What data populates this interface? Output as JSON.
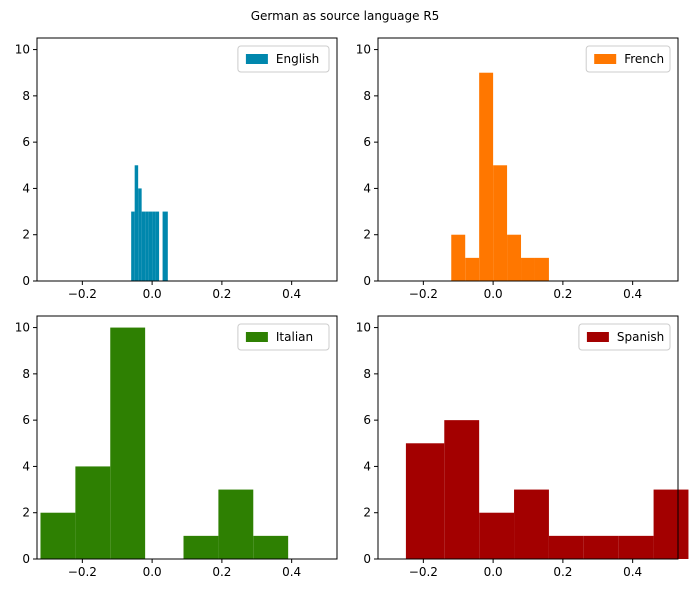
{
  "title": "German as source language R5",
  "chart_data": [
    {
      "type": "bar",
      "series": [
        {
          "name": "English",
          "color": "#0087ad"
        }
      ],
      "bins": [
        {
          "x0": -0.06,
          "x1": -0.05,
          "count": 3
        },
        {
          "x0": -0.05,
          "x1": -0.04,
          "count": 5
        },
        {
          "x0": -0.04,
          "x1": -0.03,
          "count": 4
        },
        {
          "x0": -0.03,
          "x1": -0.02,
          "count": 3
        },
        {
          "x0": -0.02,
          "x1": -0.01,
          "count": 3
        },
        {
          "x0": -0.01,
          "x1": 0.0,
          "count": 3
        },
        {
          "x0": 0.0,
          "x1": 0.01,
          "count": 3
        },
        {
          "x0": 0.01,
          "x1": 0.02,
          "count": 3
        },
        {
          "x0": 0.03,
          "x1": 0.045,
          "count": 3
        }
      ],
      "xlim": [
        -0.33,
        0.53
      ],
      "ylim": [
        0,
        10.5
      ],
      "xticks": [
        "−0.2",
        "0.0",
        "0.2",
        "0.4"
      ],
      "xtick_values": [
        -0.2,
        0.0,
        0.2,
        0.4
      ],
      "yticks": [
        "0",
        "2",
        "4",
        "6",
        "8",
        "10"
      ],
      "ytick_values": [
        0,
        2,
        4,
        6,
        8,
        10
      ],
      "legend": "top-right",
      "grid": false
    },
    {
      "type": "bar",
      "series": [
        {
          "name": "French",
          "color": "#ff7700"
        }
      ],
      "bins": [
        {
          "x0": -0.12,
          "x1": -0.08,
          "count": 2
        },
        {
          "x0": -0.08,
          "x1": -0.04,
          "count": 1
        },
        {
          "x0": -0.04,
          "x1": 0.0,
          "count": 9
        },
        {
          "x0": 0.0,
          "x1": 0.04,
          "count": 5
        },
        {
          "x0": 0.04,
          "x1": 0.08,
          "count": 2
        },
        {
          "x0": 0.08,
          "x1": 0.12,
          "count": 1
        },
        {
          "x0": 0.12,
          "x1": 0.16,
          "count": 1
        }
      ],
      "xlim": [
        -0.33,
        0.53
      ],
      "ylim": [
        0,
        10.5
      ],
      "xticks": [
        "−0.2",
        "0.0",
        "0.2",
        "0.4"
      ],
      "xtick_values": [
        -0.2,
        0.0,
        0.2,
        0.4
      ],
      "yticks": [
        "0",
        "2",
        "4",
        "6",
        "8",
        "10"
      ],
      "ytick_values": [
        0,
        2,
        4,
        6,
        8,
        10
      ],
      "legend": "top-right",
      "grid": false
    },
    {
      "type": "bar",
      "series": [
        {
          "name": "Italian",
          "color": "#2e8002"
        }
      ],
      "bins": [
        {
          "x0": -0.32,
          "x1": -0.22,
          "count": 2
        },
        {
          "x0": -0.22,
          "x1": -0.12,
          "count": 4
        },
        {
          "x0": -0.12,
          "x1": -0.02,
          "count": 10
        },
        {
          "x0": 0.09,
          "x1": 0.19,
          "count": 1
        },
        {
          "x0": 0.19,
          "x1": 0.29,
          "count": 3
        },
        {
          "x0": 0.29,
          "x1": 0.39,
          "count": 1
        }
      ],
      "xlim": [
        -0.33,
        0.53
      ],
      "ylim": [
        0,
        10.5
      ],
      "xticks": [
        "−0.2",
        "0.0",
        "0.2",
        "0.4"
      ],
      "xtick_values": [
        -0.2,
        0.0,
        0.2,
        0.4
      ],
      "yticks": [
        "0",
        "2",
        "4",
        "6",
        "8",
        "10"
      ],
      "ytick_values": [
        0,
        2,
        4,
        6,
        8,
        10
      ],
      "legend": "top-right",
      "grid": false
    },
    {
      "type": "bar",
      "series": [
        {
          "name": "Spanish",
          "color": "#a30000"
        }
      ],
      "bins": [
        {
          "x0": -0.25,
          "x1": -0.14,
          "count": 5
        },
        {
          "x0": -0.14,
          "x1": -0.04,
          "count": 6
        },
        {
          "x0": -0.04,
          "x1": 0.06,
          "count": 2
        },
        {
          "x0": 0.06,
          "x1": 0.16,
          "count": 3
        },
        {
          "x0": 0.16,
          "x1": 0.26,
          "count": 1
        },
        {
          "x0": 0.26,
          "x1": 0.36,
          "count": 1
        },
        {
          "x0": 0.36,
          "x1": 0.46,
          "count": 1
        },
        {
          "x0": 0.46,
          "x1": 0.56,
          "count": 3
        }
      ],
      "xlim": [
        -0.33,
        0.53
      ],
      "ylim": [
        0,
        10.5
      ],
      "xticks": [
        "−0.2",
        "0.0",
        "0.2",
        "0.4"
      ],
      "xtick_values": [
        -0.2,
        0.0,
        0.2,
        0.4
      ],
      "yticks": [
        "0",
        "2",
        "4",
        "6",
        "8",
        "10"
      ],
      "ytick_values": [
        0,
        2,
        4,
        6,
        8,
        10
      ],
      "legend": "top-right",
      "grid": false
    }
  ]
}
